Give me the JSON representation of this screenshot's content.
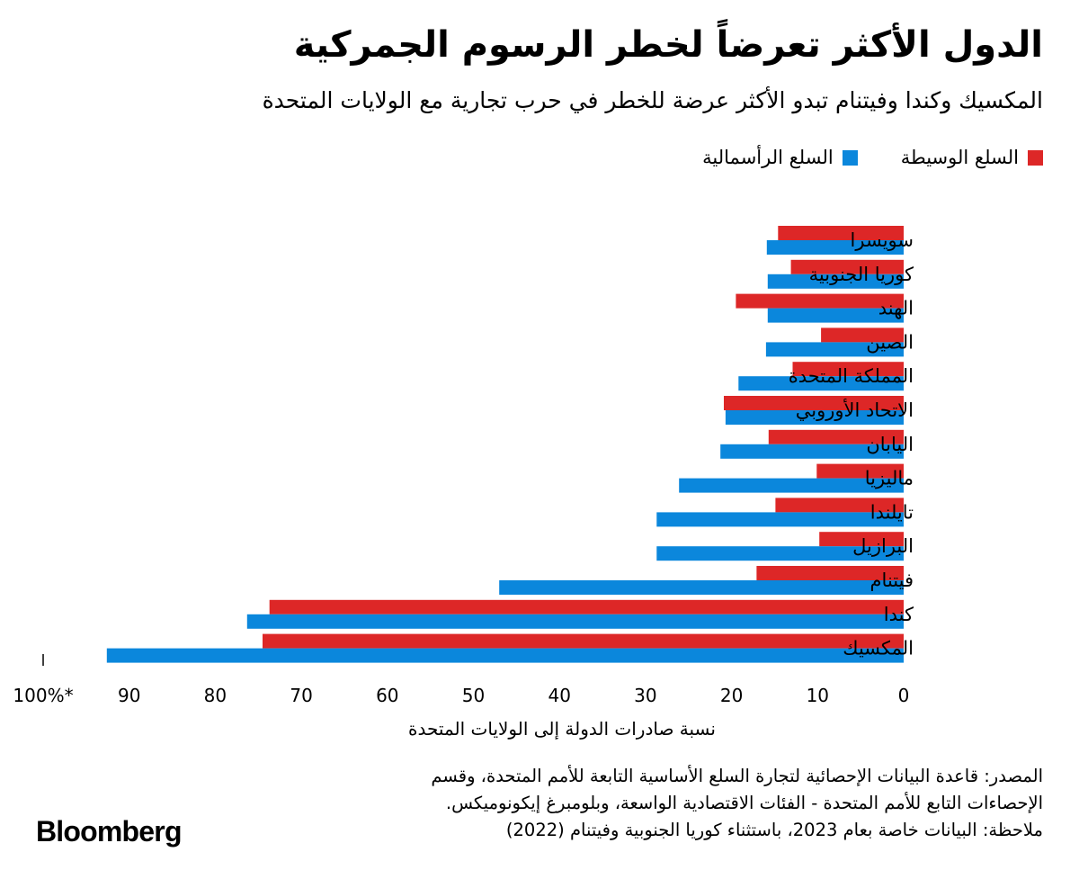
{
  "header": {
    "title": "الدول الأكثر تعرضاً لخطر الرسوم الجمركية",
    "subtitle": "المكسيك وكندا وفيتنام تبدو الأكثر عرضة للخطر في حرب تجارية مع الولايات المتحدة"
  },
  "legend": {
    "intermediate": "السلع الوسيطة",
    "capital": "السلع الرأسمالية"
  },
  "colors": {
    "intermediate": "#dd2727",
    "capital": "#0b87dc"
  },
  "chart_data": {
    "type": "bar",
    "orientation": "horizontal",
    "title": "الدول الأكثر تعرضاً لخطر الرسوم الجمركية",
    "subtitle": "المكسيك وكندا وفيتنام تبدو الأكثر عرضة للخطر في حرب تجارية مع الولايات المتحدة",
    "xlabel": "نسبة صادرات الدولة إلى الولايات المتحدة",
    "ylabel": "",
    "xlim": [
      0,
      100
    ],
    "x_direction": "right-to-left",
    "ticks": [
      "0",
      "10",
      "20",
      "30",
      "40",
      "50",
      "60",
      "70",
      "80",
      "90",
      "100%*"
    ],
    "grid": false,
    "legend_position": "top-right",
    "categories": [
      "سويسرا",
      "كوريا الجنوبية",
      "الهند",
      "الصين",
      "المملكة المتحدة",
      "الاتحاد الأوروبي",
      "اليابان",
      "ماليزيا",
      "تايلندا",
      "البرازيل",
      "فيتنام",
      "كندا",
      "المكسيك"
    ],
    "series": [
      {
        "name": "السلع الوسيطة",
        "values": [
          14.6,
          13.1,
          19.5,
          9.6,
          12.9,
          20.9,
          15.7,
          10.1,
          14.9,
          9.8,
          17.1,
          73.7,
          74.5
        ]
      },
      {
        "name": "السلع الرأسمالية",
        "values": [
          15.9,
          15.8,
          15.8,
          16.0,
          19.2,
          20.7,
          21.3,
          26.1,
          28.7,
          28.7,
          47.0,
          76.3,
          92.6
        ]
      }
    ]
  },
  "footnote": {
    "line1": "المصدر: قاعدة البيانات الإحصائية لتجارة السلع الأساسية التابعة للأمم المتحدة، وقسم",
    "line2": "الإحصاءات التابع للأمم المتحدة - الفئات الاقتصادية الواسعة، وبلومبرغ إيكونوميكس.",
    "line3": "ملاحظة: البيانات خاصة بعام 2023، باستثناء كوريا الجنوبية وفيتنام (2022)"
  },
  "brand": {
    "logo": "Bloomberg"
  }
}
